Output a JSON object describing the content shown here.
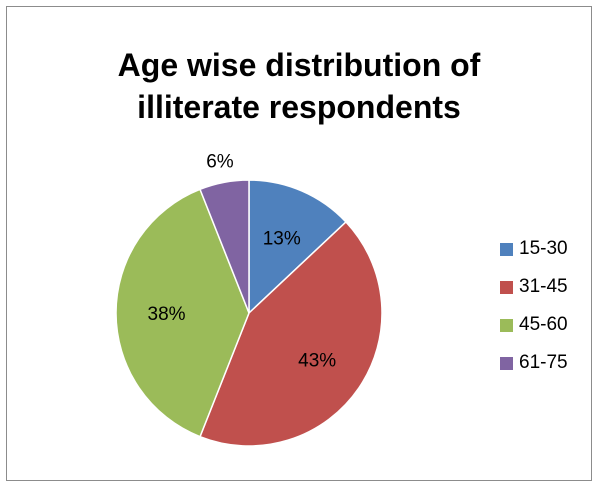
{
  "chart_data": {
    "type": "pie",
    "title_lines": [
      "Age wise distribution of",
      "illiterate respondents"
    ],
    "categories": [
      "15-30",
      "31-45",
      "45-60",
      "61-75"
    ],
    "values": [
      13,
      43,
      38,
      6
    ],
    "labels": [
      "13%",
      "43%",
      "38%",
      "6%"
    ],
    "colors": [
      "#4f81bd",
      "#c0504d",
      "#9bbb59",
      "#8064a2"
    ],
    "legend_position": "right"
  }
}
